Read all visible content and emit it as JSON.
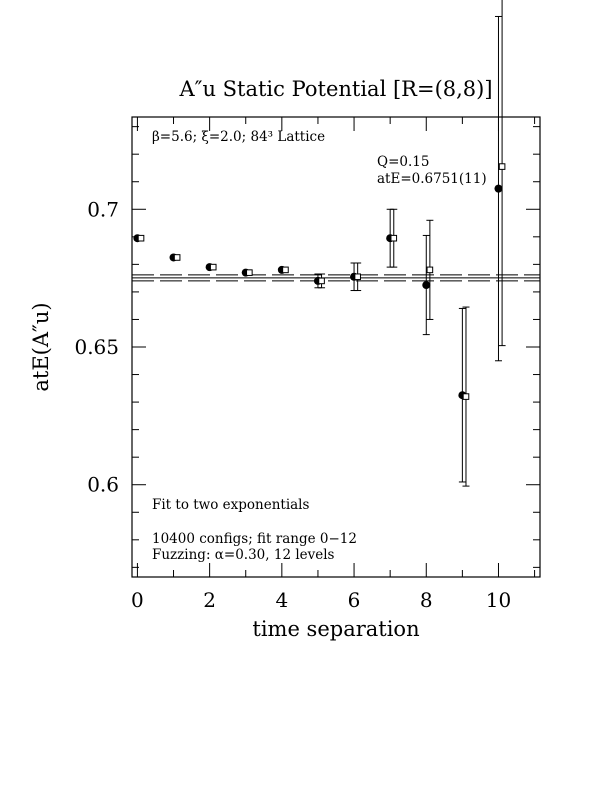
{
  "chart_data": {
    "type": "scatter",
    "title": "A″u  Static Potential [R=(8,8)]",
    "xlabel": "time separation",
    "ylabel": "atE(A″u)",
    "xlim": [
      -0.15,
      11.15
    ],
    "ylim": [
      0.5665,
      0.7335
    ],
    "x_ticks": [
      "0",
      "2",
      "4",
      "6",
      "8",
      "10"
    ],
    "y_ticks": [
      "0.6",
      "0.65",
      "0.7"
    ],
    "grid": false,
    "annotations": {
      "lattice": "β=5.6; ξ=2.0; 84³ Lattice",
      "q_value": "Q=0.15",
      "energy": "atE=0.6751(11)",
      "fit_method": "Fit to two exponentials",
      "configs": "10400 configs; fit range 0−12",
      "fuzzing": "Fuzzing: α=0.30, 12 levels"
    },
    "fit": {
      "value": 0.6751,
      "error": 0.0011,
      "x_range": [
        -0.15,
        11.15
      ]
    },
    "series": [
      {
        "marker": "filled-circle",
        "points": [
          {
            "x": 0,
            "y": 0.6895,
            "err": 0.0
          },
          {
            "x": 1,
            "y": 0.6825,
            "err": 0.0
          },
          {
            "x": 2,
            "y": 0.679,
            "err": 0.0
          },
          {
            "x": 3,
            "y": 0.677,
            "err": 0.0
          },
          {
            "x": 4,
            "y": 0.678,
            "err": 0.0
          },
          {
            "x": 5,
            "y": 0.674,
            "err": 0.0025
          },
          {
            "x": 6,
            "y": 0.6755,
            "err": 0.005
          },
          {
            "x": 7,
            "y": 0.6895,
            "err": 0.0105
          },
          {
            "x": 8,
            "y": 0.6725,
            "err": 0.018
          },
          {
            "x": 9,
            "y": 0.6325,
            "err": 0.0315
          },
          {
            "x": 10,
            "y": 0.7075,
            "err": 0.0625
          }
        ]
      },
      {
        "marker": "open-square",
        "points": [
          {
            "x": 0.1,
            "y": 0.6895,
            "err": 0.0
          },
          {
            "x": 1.1,
            "y": 0.6825,
            "err": 0.0
          },
          {
            "x": 2.1,
            "y": 0.679,
            "err": 0.0
          },
          {
            "x": 3.1,
            "y": 0.677,
            "err": 0.0
          },
          {
            "x": 4.1,
            "y": 0.678,
            "err": 0.0
          },
          {
            "x": 5.1,
            "y": 0.674,
            "err": 0.0025
          },
          {
            "x": 6.1,
            "y": 0.6755,
            "err": 0.005
          },
          {
            "x": 7.1,
            "y": 0.6895,
            "err": 0.0105
          },
          {
            "x": 8.1,
            "y": 0.678,
            "err": 0.018
          },
          {
            "x": 9.1,
            "y": 0.632,
            "err": 0.0325
          },
          {
            "x": 10.1,
            "y": 0.7155,
            "err": 0.065
          }
        ]
      }
    ]
  }
}
